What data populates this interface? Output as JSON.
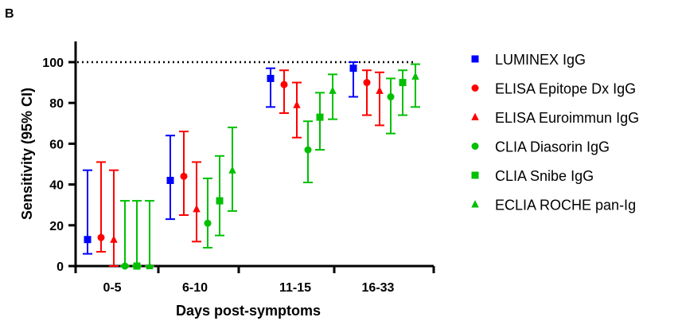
{
  "panel_label": "B",
  "chart_data": {
    "type": "scatter",
    "title": "",
    "xlabel": "Days post-symptoms",
    "ylabel": "Sensitivity (95% CI)",
    "ylim": [
      0,
      100
    ],
    "yticks": [
      0,
      20,
      40,
      60,
      80,
      100
    ],
    "reference_line": {
      "y": 100,
      "style": "dotted"
    },
    "grid": false,
    "legend_position": "right",
    "categories": [
      "0-5",
      "6-10",
      "11-15",
      "16-33"
    ],
    "series": [
      {
        "name": "LUMINEX IgG",
        "marker": "square",
        "color": "#0000ff",
        "values": [
          13,
          42,
          92,
          97
        ],
        "lower": [
          6,
          23,
          78,
          83
        ],
        "upper": [
          47,
          64,
          97,
          100
        ]
      },
      {
        "name": "ELISA Epitope Dx IgG",
        "marker": "circle",
        "color": "#ff0000",
        "values": [
          14,
          44,
          89,
          90
        ],
        "lower": [
          7,
          25,
          75,
          74
        ],
        "upper": [
          51,
          66,
          96,
          96
        ]
      },
      {
        "name": "ELISA Euroimmun IgG",
        "marker": "triangle",
        "color": "#ff0000",
        "values": [
          13,
          28,
          79,
          86
        ],
        "lower": [
          0,
          12,
          63,
          69
        ],
        "upper": [
          47,
          51,
          90,
          95
        ]
      },
      {
        "name": "CLIA Diasorin IgG",
        "marker": "circle",
        "color": "#00c000",
        "values": [
          0,
          21,
          57,
          83
        ],
        "lower": [
          0,
          9,
          41,
          65
        ],
        "upper": [
          32,
          43,
          71,
          92
        ]
      },
      {
        "name": "CLIA Snibe IgG",
        "marker": "square",
        "color": "#00c000",
        "values": [
          0,
          32,
          73,
          90
        ],
        "lower": [
          0,
          15,
          57,
          74
        ],
        "upper": [
          32,
          54,
          85,
          96
        ]
      },
      {
        "name": "ECLIA ROCHE pan-Ig",
        "marker": "triangle",
        "color": "#00c000",
        "values": [
          0,
          47,
          86,
          93
        ],
        "lower": [
          0,
          27,
          72,
          78
        ],
        "upper": [
          32,
          68,
          94,
          99
        ]
      }
    ]
  }
}
